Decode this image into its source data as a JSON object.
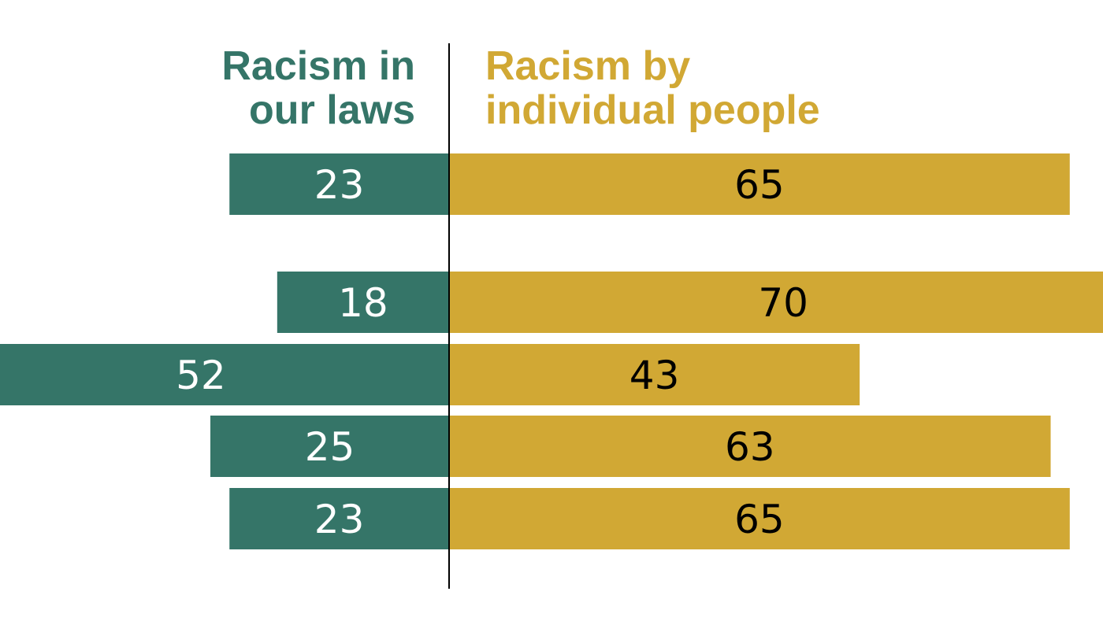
{
  "chart_data": {
    "type": "bar",
    "orientation": "horizontal-diverging",
    "series": [
      {
        "name": "Racism in our laws",
        "name_lines": [
          "Racism in",
          "our laws"
        ],
        "color": "#357568",
        "label_color": "#ffffff",
        "values": [
          23,
          18,
          52,
          25,
          23
        ]
      },
      {
        "name": "Racism by individual people",
        "name_lines": [
          "Racism by",
          "individual people"
        ],
        "color": "#d1a834",
        "label_color": "#000000",
        "values": [
          65,
          70,
          43,
          63,
          65
        ]
      }
    ],
    "grid": false,
    "legend": "top"
  }
}
